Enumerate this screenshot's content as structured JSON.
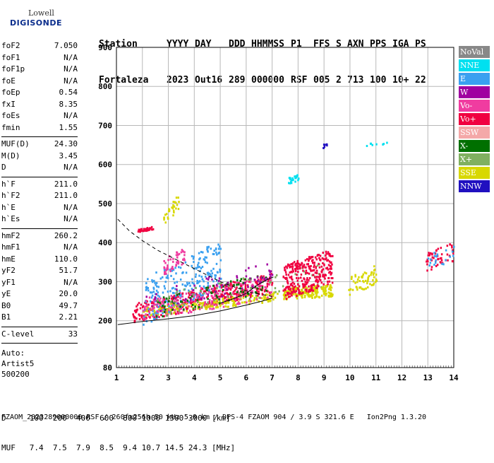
{
  "logo": {
    "line1": "Lowell",
    "line2": "DIGISONDE"
  },
  "header": {
    "labels": [
      "Station",
      "YYYY",
      "DAY",
      "DDD",
      "HHMMSS",
      "P1",
      "FFS",
      "S",
      "AXN",
      "PPS",
      "IGA",
      "PS"
    ],
    "values": [
      "Fortaleza",
      "2023",
      "Out16",
      "289",
      "000000",
      "RSF",
      "005",
      "2",
      "713",
      "100",
      "10+",
      "22"
    ]
  },
  "params": {
    "group1": [
      {
        "name": "foF2",
        "value": "7.050"
      },
      {
        "name": "foF1",
        "value": "N/A"
      },
      {
        "name": "foF1p",
        "value": "N/A"
      },
      {
        "name": "foE",
        "value": "N/A"
      },
      {
        "name": "foEp",
        "value": "0.54"
      },
      {
        "name": "fxI",
        "value": "8.35"
      },
      {
        "name": "foEs",
        "value": "N/A"
      },
      {
        "name": "fmin",
        "value": "1.55"
      }
    ],
    "group2": [
      {
        "name": "MUF(D)",
        "value": "24.30"
      },
      {
        "name": "M(D)",
        "value": "3.45"
      },
      {
        "name": "D",
        "value": "N/A"
      }
    ],
    "group3": [
      {
        "name": "h`F",
        "value": "211.0"
      },
      {
        "name": "h`F2",
        "value": "211.0"
      },
      {
        "name": "h`E",
        "value": "N/A"
      },
      {
        "name": "h`Es",
        "value": "N/A"
      }
    ],
    "group4": [
      {
        "name": "hmF2",
        "value": "260.2"
      },
      {
        "name": "hmF1",
        "value": "N/A"
      },
      {
        "name": "hmE",
        "value": "110.0"
      },
      {
        "name": "yF2",
        "value": "51.7"
      },
      {
        "name": "yF1",
        "value": "N/A"
      },
      {
        "name": "yE",
        "value": "20.0"
      },
      {
        "name": "B0",
        "value": "49.7"
      },
      {
        "name": "B1",
        "value": "2.21"
      }
    ],
    "group5": [
      {
        "name": "C-level",
        "value": "33"
      }
    ],
    "auto": [
      "Auto:",
      "Artist5",
      "500200"
    ]
  },
  "bottom": {
    "d_line": "D     100  200  400  600  800 1000 1500 3000 [km]",
    "muf_line": "MUF   7.4  7.5  7.9  8.5  9.4 10.7 14.5 24.3 [MHz]"
  },
  "footer": "FZAOM_2023289000000.RSF / 260fx256h 50 kHz 5.0 km / DPS-4 FZAOM 904 / 3.9 S 321.6 E   Ion2Png 1.3.20",
  "legend": [
    {
      "label": "NoVal",
      "color": "#888888"
    },
    {
      "label": "NNE",
      "color": "#00e0f0"
    },
    {
      "label": "E",
      "color": "#3aa0f0"
    },
    {
      "label": "W",
      "color": "#a000a0"
    },
    {
      "label": "Vo-",
      "color": "#f03ca0"
    },
    {
      "label": "Vo+",
      "color": "#f00040"
    },
    {
      "label": "SSW",
      "color": "#f4a8a8"
    },
    {
      "label": "X-",
      "color": "#007000"
    },
    {
      "label": "X+",
      "color": "#80b060"
    },
    {
      "label": "SSE",
      "color": "#d8d800"
    },
    {
      "label": "NNW",
      "color": "#2010c0"
    }
  ],
  "chart_data": {
    "type": "scatter",
    "xlim": [
      1,
      14
    ],
    "ylim": [
      80,
      900
    ],
    "x_ticks": [
      "1",
      "2",
      "3",
      "4",
      "5",
      "6",
      "7",
      "8",
      "9",
      "10",
      "11",
      "12",
      "13",
      "14"
    ],
    "y_ticks": [
      "80",
      "200",
      "300",
      "400",
      "500",
      "600",
      "700",
      "800",
      "900"
    ],
    "grid": true,
    "clusters": [
      {
        "name": "Vo+",
        "x_range": [
          1.6,
          7.0
        ],
        "y_base": [
          220,
          300
        ],
        "spread": 25,
        "density": 400
      },
      {
        "name": "SSE",
        "x_range": [
          2.0,
          7.2
        ],
        "y_base": [
          225,
          265
        ],
        "spread": 12,
        "density": 200
      },
      {
        "name": "E",
        "x_range": [
          2.0,
          5.0
        ],
        "y_base": [
          250,
          350
        ],
        "spread": 60,
        "density": 250
      },
      {
        "name": "Vo-",
        "x_range": [
          2.0,
          7.0
        ],
        "y_base": [
          230,
          290
        ],
        "spread": 30,
        "density": 200
      },
      {
        "name": "X-",
        "x_range": [
          2.5,
          6.8
        ],
        "y_base": [
          235,
          300
        ],
        "spread": 25,
        "density": 80
      },
      {
        "name": "X+",
        "x_range": [
          2.5,
          9.0
        ],
        "y_base": [
          240,
          320
        ],
        "spread": 30,
        "density": 70
      },
      {
        "name": "W",
        "x_range": [
          2.0,
          7.0
        ],
        "y_base": [
          240,
          330
        ],
        "spread": 30,
        "density": 60
      },
      {
        "name": "SSE",
        "x_range": [
          7.4,
          9.3
        ],
        "y_base": [
          270,
          280
        ],
        "spread": 15,
        "density": 200
      },
      {
        "name": "Vo+",
        "x_range": [
          7.4,
          9.3
        ],
        "y_base": [
          300,
          340
        ],
        "spread": 45,
        "density": 300
      },
      {
        "name": "SSE",
        "x_range": [
          9.9,
          11.0
        ],
        "y_base": [
          290,
          320
        ],
        "spread": 25,
        "density": 60
      },
      {
        "name": "Vo+",
        "x_range": [
          12.9,
          14.0
        ],
        "y_base": [
          350,
          380
        ],
        "spread": 25,
        "density": 50
      },
      {
        "name": "E",
        "x_range": [
          12.9,
          14.0
        ],
        "y_base": [
          355,
          375
        ],
        "spread": 20,
        "density": 20
      },
      {
        "name": "Vo+",
        "x_range": [
          1.8,
          2.4
        ],
        "y_base": [
          432,
          440
        ],
        "spread": 4,
        "density": 40
      },
      {
        "name": "Vo-",
        "x_range": [
          2.8,
          3.6
        ],
        "y_base": [
          340,
          370
        ],
        "spread": 20,
        "density": 50
      },
      {
        "name": "SSE",
        "x_range": [
          2.8,
          3.4
        ],
        "y_base": [
          460,
          510
        ],
        "spread": 20,
        "density": 30
      },
      {
        "name": "NNE",
        "x_range": [
          7.6,
          8.0
        ],
        "y_base": [
          560,
          570
        ],
        "spread": 8,
        "density": 25
      },
      {
        "name": "NNE",
        "x_range": [
          10.6,
          11.4
        ],
        "y_base": [
          652,
          658
        ],
        "spread": 3,
        "density": 8
      },
      {
        "name": "NNW",
        "x_range": [
          8.9,
          9.1
        ],
        "y_base": [
          648,
          658
        ],
        "spread": 6,
        "density": 8
      }
    ],
    "curves": [
      {
        "name": "upper-dashed",
        "style": "dashed",
        "x": [
          1.05,
          1.5,
          2.0,
          2.6,
          3.2,
          3.8,
          4.4,
          5.0,
          5.6,
          6.2,
          6.8,
          7.0
        ],
        "y": [
          460,
          430,
          405,
          380,
          360,
          340,
          320,
          300,
          285,
          272,
          265,
          262
        ]
      },
      {
        "name": "lower-solid",
        "style": "solid",
        "x": [
          1.05,
          2.0,
          3.0,
          4.0,
          5.0,
          6.0,
          6.6,
          7.0
        ],
        "y": [
          190,
          198,
          205,
          213,
          225,
          240,
          250,
          258
        ]
      },
      {
        "name": "upper-solid",
        "style": "solid",
        "x": [
          5.0,
          5.5,
          6.0,
          6.4,
          6.8,
          7.05
        ],
        "y": [
          245,
          256,
          270,
          290,
          305,
          312
        ]
      }
    ]
  }
}
